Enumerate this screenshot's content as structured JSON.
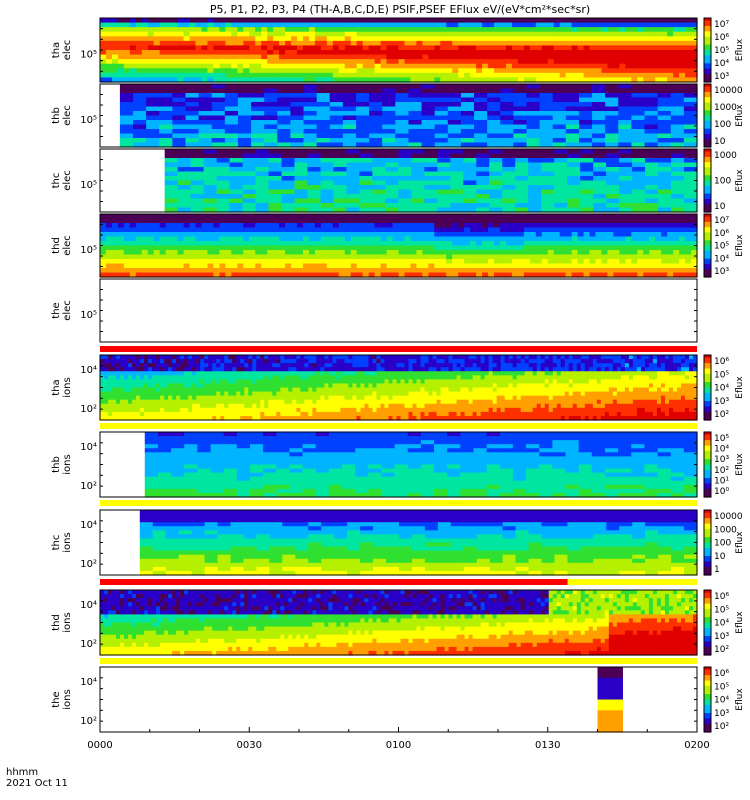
{
  "title": "P5, P1, P2, P3, P4 (TH-A,B,C,D,E) PSIF,PSEF EFlux eV/(eV*cm²*sec*sr)",
  "footer": {
    "line1": "hhmm",
    "line2": "2021 Oct 11"
  },
  "colorbar_label": "Eflux",
  "chart_data": {
    "type": "heatmap",
    "x_ticks": [
      "0000",
      "0030",
      "0100",
      "0130",
      "0200"
    ],
    "x_range_minutes": [
      0,
      120
    ],
    "y_scale": "log",
    "colormap": [
      "#4b0055",
      "#2a00c8",
      "#0040ff",
      "#00b4ff",
      "#00e6a0",
      "#30e030",
      "#b4f000",
      "#ffff00",
      "#ffa000",
      "#ff3000",
      "#e00000"
    ],
    "panels": [
      {
        "name": "tha elec",
        "line1": "tha",
        "line2": "elec",
        "ytick": "10⁵",
        "data_start_min": 0,
        "pattern": "elec_warm",
        "cb": [
          "10⁷",
          "10⁶",
          "10⁵",
          "10⁴",
          "10³"
        ]
      },
      {
        "name": "thb elec",
        "line1": "thb",
        "line2": "elec",
        "ytick": "10⁵",
        "data_start_min": 4,
        "pattern": "elec_cool",
        "cb": [
          "10000",
          "1000",
          "100",
          "10"
        ]
      },
      {
        "name": "thc elec",
        "line1": "thc",
        "line2": "elec",
        "ytick": "10⁵",
        "data_start_min": 13,
        "pattern": "elec_cyan",
        "cb": [
          "1000",
          "100",
          "10"
        ]
      },
      {
        "name": "thd elec",
        "line1": "thd",
        "line2": "elec",
        "ytick": "10⁵",
        "data_start_min": 0,
        "pattern": "elec_hot",
        "cb": [
          "10⁷",
          "10⁶",
          "10⁵",
          "10⁴",
          "10³"
        ]
      },
      {
        "name": "the elec",
        "line1": "the",
        "line2": "elec",
        "ytick": "10⁵",
        "data_start_min": null,
        "pattern": "empty",
        "cb": []
      },
      {
        "name": "tha ions",
        "line1": "tha",
        "line2": "ions",
        "ytick_top": "10⁴",
        "ytick": "10²",
        "data_start_min": 0,
        "pattern": "ion_a",
        "cb": [
          "10⁶",
          "10⁵",
          "10⁴",
          "10³",
          "10²"
        ]
      },
      {
        "name": "thb ions",
        "line1": "thb",
        "line2": "ions",
        "ytick_top": "10⁴",
        "ytick": "10²",
        "data_start_min": 9,
        "pattern": "ion_b",
        "cb": [
          "10⁵",
          "10⁴",
          "10³",
          "10²",
          "10¹",
          "10⁰"
        ]
      },
      {
        "name": "thc ions",
        "line1": "thc",
        "line2": "ions",
        "ytick_top": "10⁴",
        "ytick": "10²",
        "data_start_min": 8,
        "pattern": "ion_c",
        "cb": [
          "10000",
          "1000",
          "100",
          "10",
          "1"
        ]
      },
      {
        "name": "thd ions",
        "line1": "thd",
        "line2": "ions",
        "ytick_top": "10⁴",
        "ytick": "10²",
        "data_start_min": 0,
        "pattern": "ion_d",
        "cb": [
          "10⁶",
          "10⁵",
          "10⁴",
          "10³",
          "10²"
        ]
      },
      {
        "name": "the ions",
        "line1": "the",
        "line2": "ions",
        "ytick_top": "10⁴",
        "ytick": "10²",
        "data_start_min": 100,
        "data_end_min": 105,
        "pattern": "ion_e",
        "cb": [
          "10⁶",
          "10⁵",
          "10⁴",
          "10³",
          "10²"
        ]
      }
    ],
    "bars": [
      {
        "after_panel": 4,
        "color": "#ff0000",
        "start_min": 0,
        "end_min": 120
      },
      {
        "after_panel": 5,
        "color": "#ffff00",
        "start_min": 0,
        "end_min": 120
      },
      {
        "after_panel": 6,
        "color": "#ffff00",
        "start_min": 0,
        "end_min": 120
      },
      {
        "after_panel": 7,
        "color": "#ff0000",
        "start_min": 0,
        "end_min": 94
      },
      {
        "after_panel": 7,
        "color": "#ffff00",
        "start_min": 94,
        "end_min": 120
      },
      {
        "after_panel": 8,
        "color": "#ffff00",
        "start_min": 0,
        "end_min": 120
      }
    ]
  }
}
